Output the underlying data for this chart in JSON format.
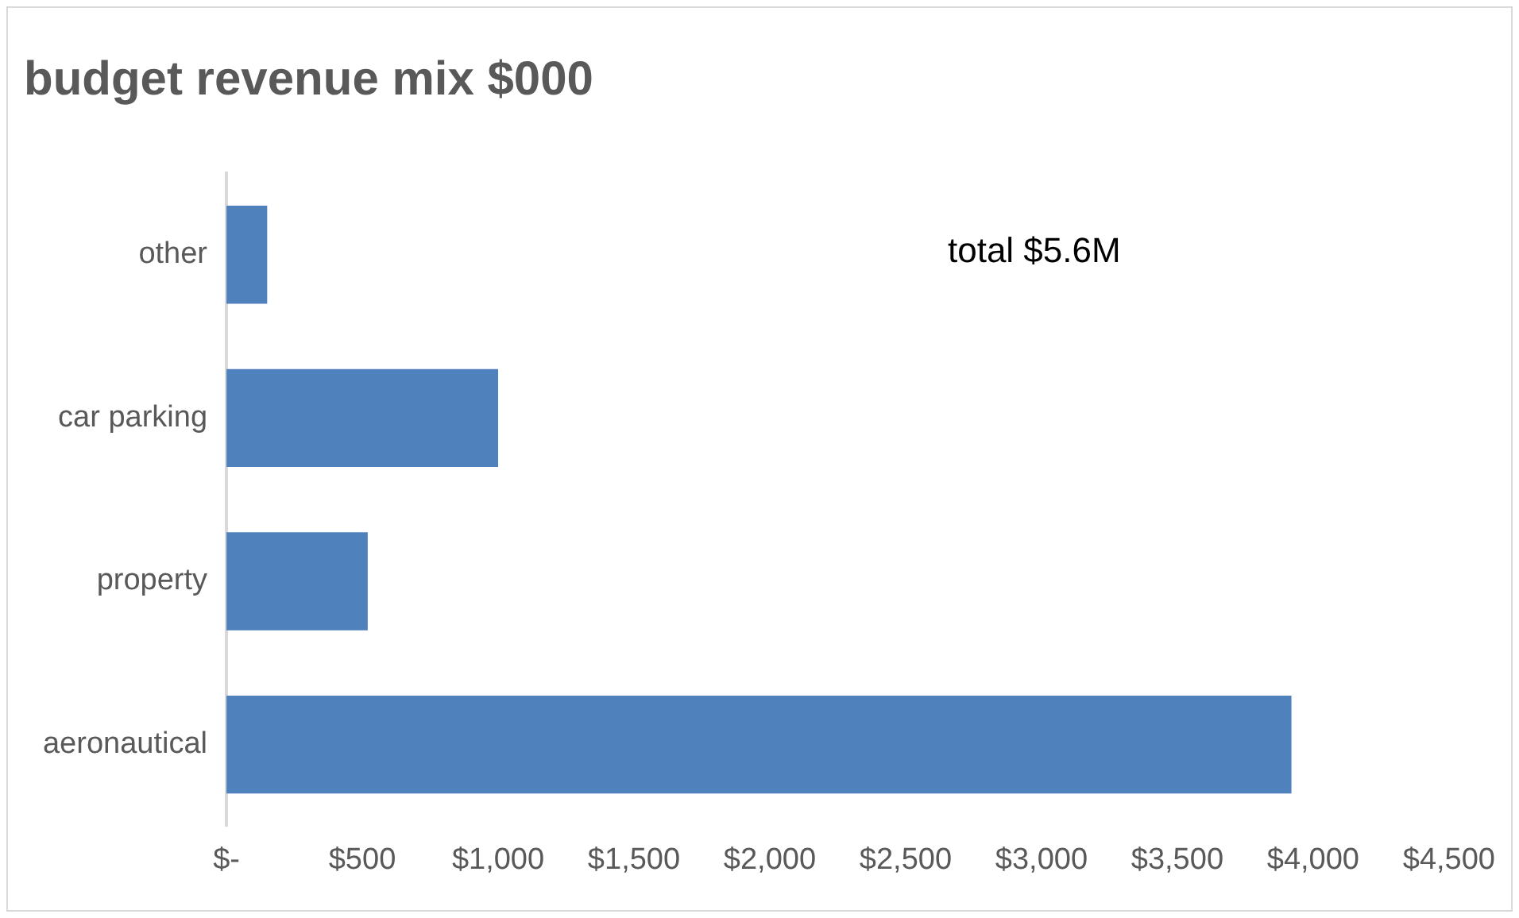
{
  "chart_data": {
    "type": "bar",
    "orientation": "horizontal",
    "title": "budget revenue mix $000",
    "categories": [
      "other",
      "car parking",
      "property",
      "aeronautical"
    ],
    "values": [
      150,
      1000,
      520,
      3920
    ],
    "color": "#4f81bd",
    "xlim": [
      0,
      4500
    ],
    "xticks": [
      {
        "value": 0,
        "label": "$-"
      },
      {
        "value": 500,
        "label": "$500"
      },
      {
        "value": 1000,
        "label": "$1,000"
      },
      {
        "value": 1500,
        "label": "$1,500"
      },
      {
        "value": 2000,
        "label": "$2,000"
      },
      {
        "value": 2500,
        "label": "$2,500"
      },
      {
        "value": 3000,
        "label": "$3,000"
      },
      {
        "value": 3500,
        "label": "$3,500"
      },
      {
        "value": 4000,
        "label": "$4,000"
      },
      {
        "value": 4500,
        "label": "$4,500"
      }
    ],
    "grid": false,
    "annotations": [
      "total $5.6M"
    ]
  }
}
